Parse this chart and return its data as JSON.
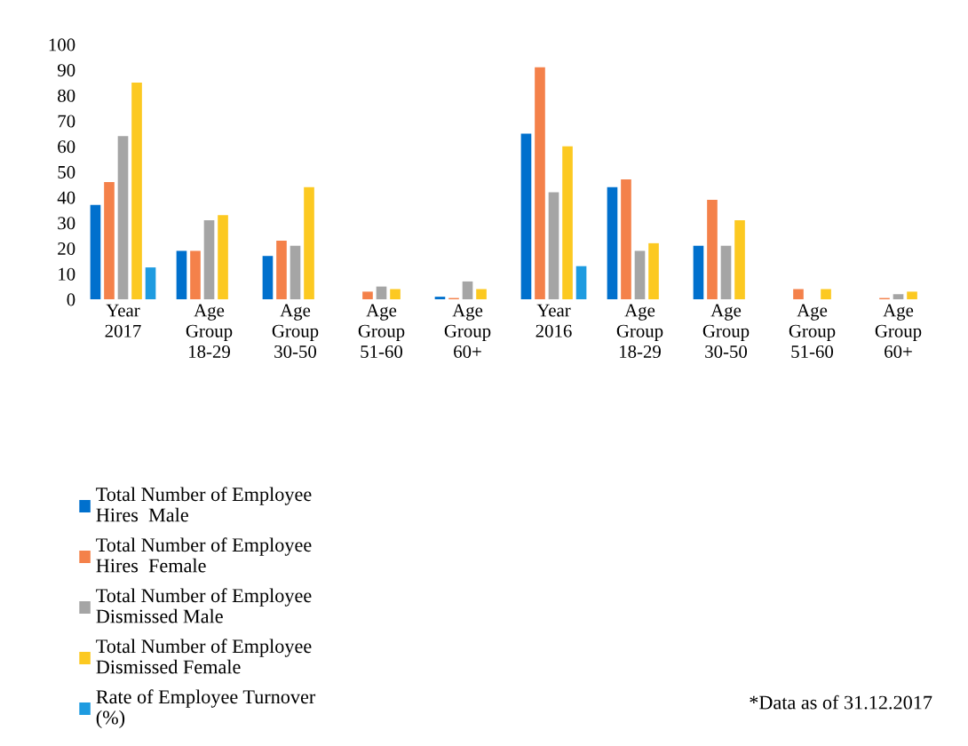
{
  "chart_data": {
    "type": "bar",
    "categories": [
      "Year\n2017",
      "Age\nGroup\n18-29",
      "Age\nGroup\n30-50",
      "Age\nGroup\n51-60",
      "Age\nGroup\n60+",
      "Year\n2016",
      "Age\nGroup\n18-29",
      "Age\nGroup\n30-50",
      "Age\nGroup\n51-60",
      "Age\nGroup\n60+"
    ],
    "series": [
      {
        "name": "Total Number of Employee\nHires  Male",
        "color": "#0070cd",
        "values": [
          37,
          19,
          17,
          null,
          1,
          65,
          44,
          21,
          null,
          null
        ]
      },
      {
        "name": "Total Number of Employee\nHires  Female",
        "color": "#f4814a",
        "values": [
          46,
          19,
          23,
          3,
          0.5,
          91,
          47,
          39,
          4,
          0.5
        ]
      },
      {
        "name": "Total Number of Employee\nDismissed Male",
        "color": "#a5a5a5",
        "values": [
          64,
          31,
          21,
          5,
          7,
          42,
          19,
          21,
          null,
          2
        ]
      },
      {
        "name": "Total Number of Employee\nDismissed Female",
        "color": "#fcc921",
        "values": [
          85,
          33,
          44,
          4,
          4,
          60,
          22,
          31,
          4,
          3
        ]
      },
      {
        "name": "Rate of Employee Turnover\n(%)",
        "color": "#1e9be0",
        "values": [
          12.5,
          null,
          null,
          null,
          null,
          13,
          null,
          null,
          null,
          null
        ]
      }
    ],
    "ylim": [
      0,
      100
    ],
    "yticks": [
      0,
      10,
      20,
      30,
      40,
      50,
      60,
      70,
      80,
      90,
      100
    ],
    "legend": "bottom",
    "annotations": [
      "*Data as of 31.12.2017"
    ]
  }
}
